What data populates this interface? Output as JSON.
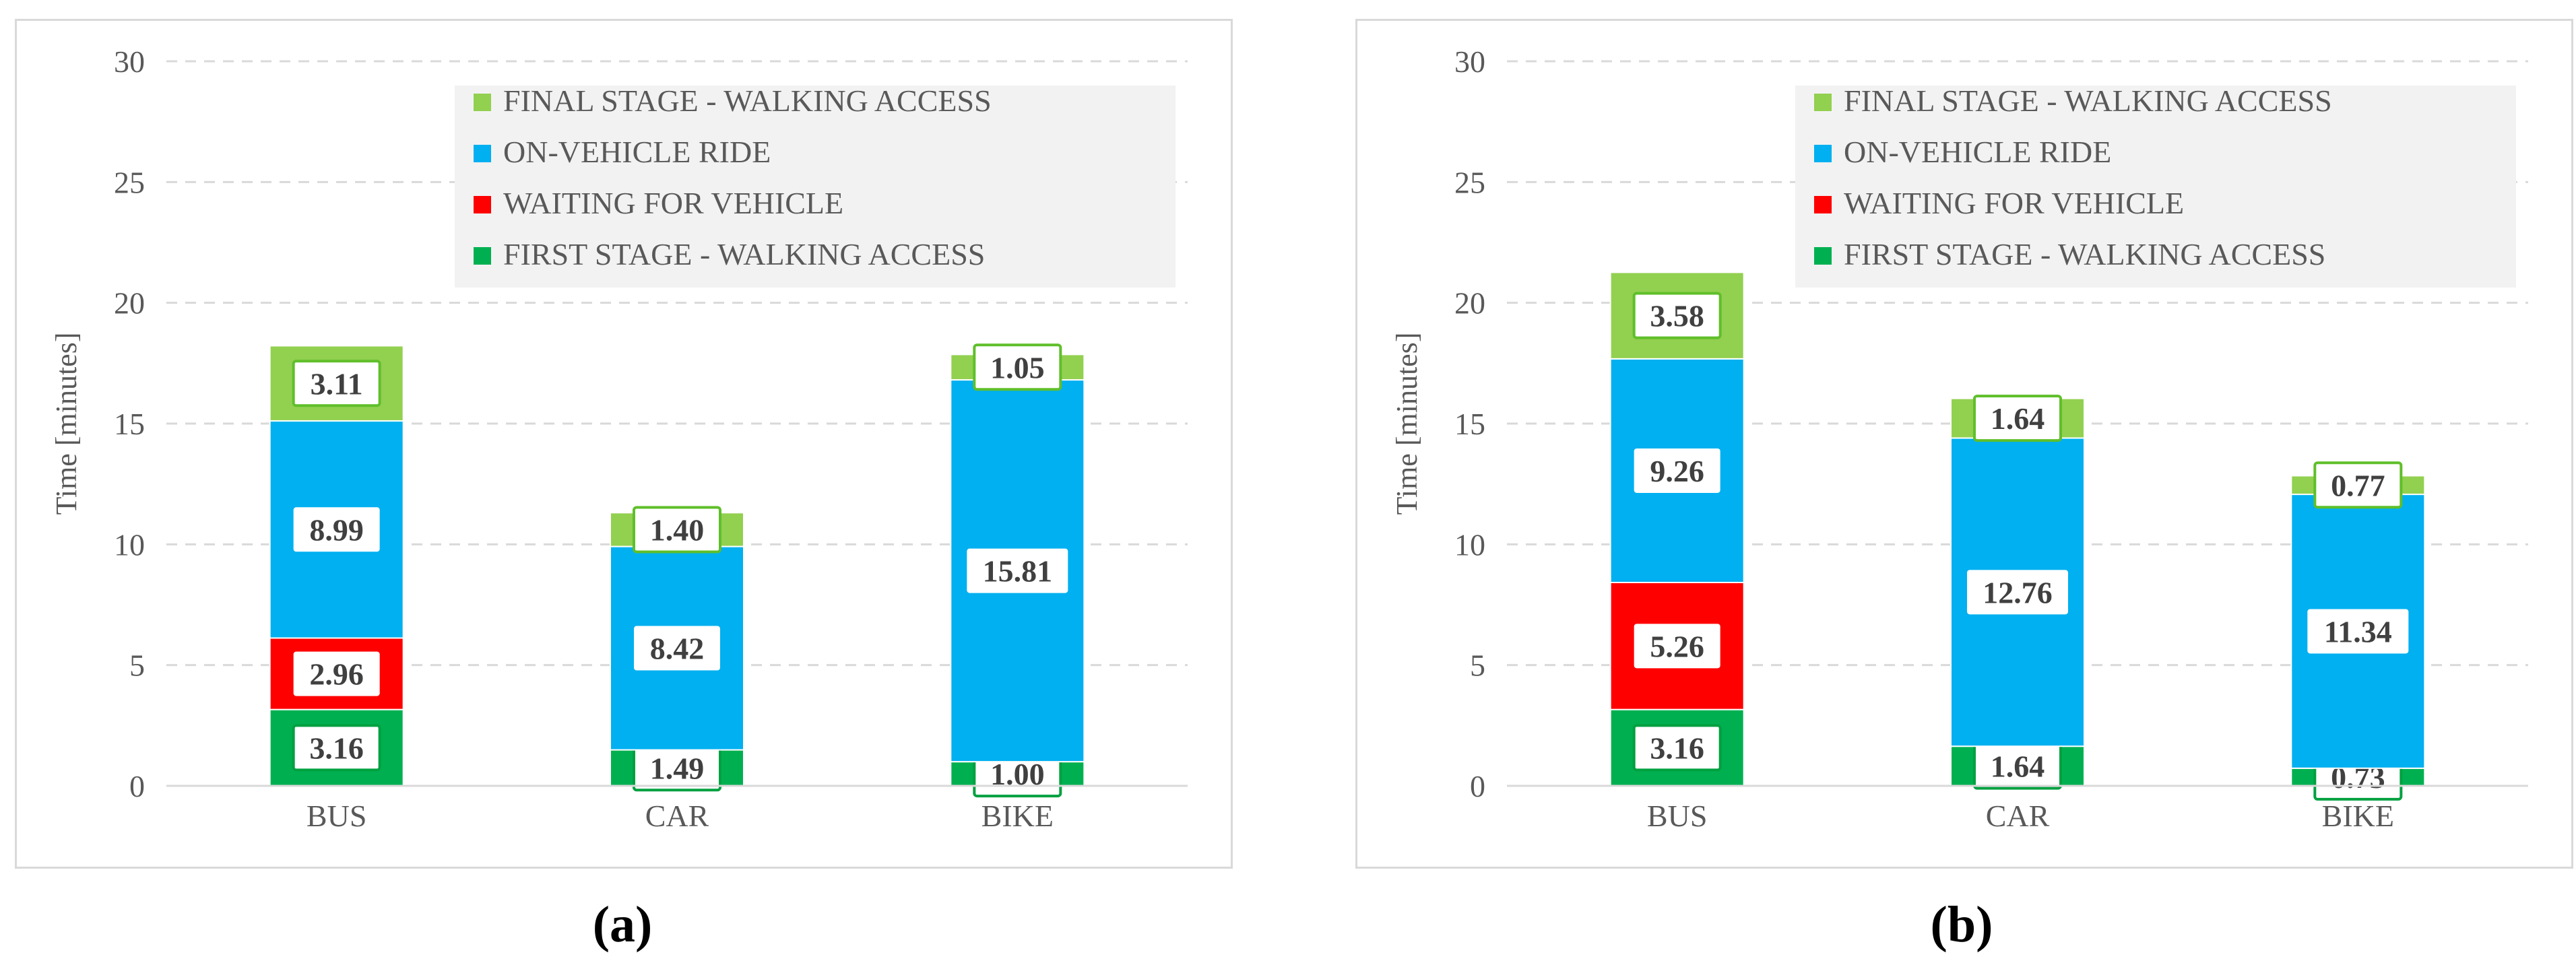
{
  "colors": {
    "final_walk": "#92d050",
    "final_walk_border": "#5fbf2a",
    "ride": "#00b0f0",
    "waiting": "#ff0000",
    "first_walk": "#00b050",
    "first_walk_border": "#00a040",
    "grid": "#d9d9d9",
    "text": "#595959",
    "legend_bg": "#f2f2f2"
  },
  "captions": [
    "(a)",
    "(b)"
  ],
  "chart_data": [
    {
      "type": "bar",
      "stacked": true,
      "title": "",
      "xlabel": "",
      "ylabel": "Time [minutes]",
      "ylim": [
        0,
        30
      ],
      "yticks": [
        "0",
        "5",
        "10",
        "15",
        "20",
        "25",
        "30"
      ],
      "grid": true,
      "legend_position": "top-right",
      "categories": [
        "BUS",
        "CAR",
        "BIKE"
      ],
      "series": [
        {
          "name": "FIRST STAGE - WALKING ACCESS",
          "values": [
            3.16,
            1.49,
            1.0
          ],
          "labels": [
            "3.16",
            "1.49",
            "1.00"
          ]
        },
        {
          "name": "WAITING FOR VEHICLE",
          "values": [
            2.96,
            0,
            0
          ],
          "labels": [
            "2.96",
            "",
            ""
          ]
        },
        {
          "name": "ON-VEHICLE RIDE",
          "values": [
            8.99,
            8.42,
            15.81
          ],
          "labels": [
            "8.99",
            "8.42",
            "15.81"
          ]
        },
        {
          "name": "FINAL STAGE - WALKING ACCESS",
          "values": [
            3.11,
            1.4,
            1.05
          ],
          "labels": [
            "3.11",
            "1.40",
            "1.05"
          ]
        }
      ]
    },
    {
      "type": "bar",
      "stacked": true,
      "title": "",
      "xlabel": "",
      "ylabel": "Time [minutes]",
      "ylim": [
        0,
        30
      ],
      "yticks": [
        "0",
        "5",
        "10",
        "15",
        "20",
        "25",
        "30"
      ],
      "grid": true,
      "legend_position": "top-right",
      "categories": [
        "BUS",
        "CAR",
        "BIKE"
      ],
      "series": [
        {
          "name": "FIRST STAGE - WALKING ACCESS",
          "values": [
            3.16,
            1.64,
            0.73
          ],
          "labels": [
            "3.16",
            "1.64",
            "0.73"
          ]
        },
        {
          "name": "WAITING FOR VEHICLE",
          "values": [
            5.26,
            0,
            0
          ],
          "labels": [
            "5.26",
            "",
            ""
          ]
        },
        {
          "name": "ON-VEHICLE RIDE",
          "values": [
            9.26,
            12.76,
            11.34
          ],
          "labels": [
            "9.26",
            "12.76",
            "11.34"
          ]
        },
        {
          "name": "FINAL STAGE - WALKING ACCESS",
          "values": [
            3.58,
            1.64,
            0.77
          ],
          "labels": [
            "3.58",
            "1.64",
            "0.77"
          ]
        }
      ]
    }
  ]
}
